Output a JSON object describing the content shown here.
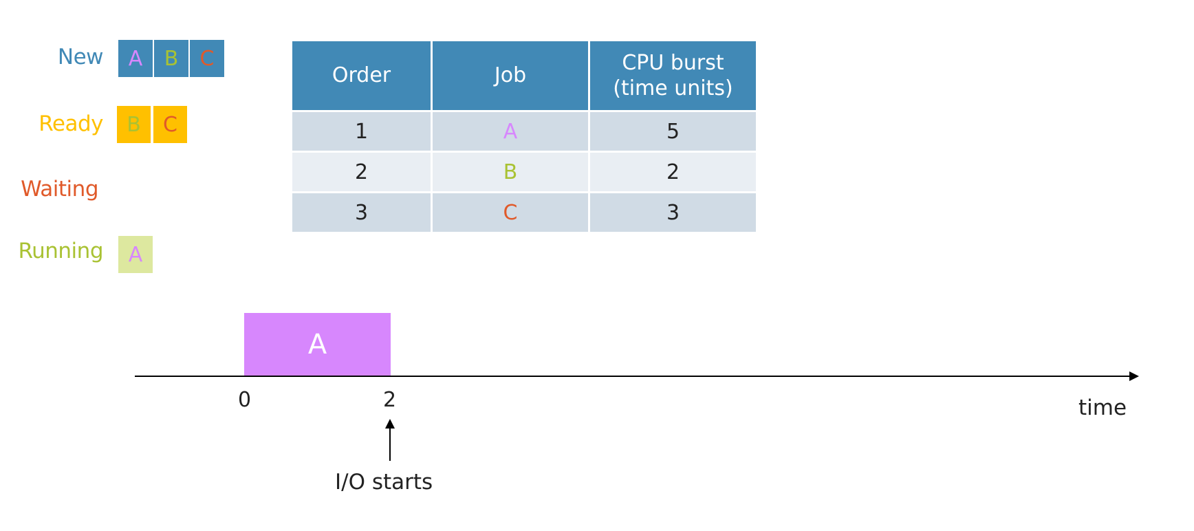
{
  "colors": {
    "new": "#4189b6",
    "ready": "#ffc000",
    "waiting": "#e05a2a",
    "running": "#a9c233",
    "job_a": "#d787fd",
    "job_b": "#a9c233",
    "job_c": "#e05a2a"
  },
  "states": {
    "new": {
      "label": "New",
      "jobs": [
        "A",
        "B",
        "C"
      ]
    },
    "ready": {
      "label": "Ready",
      "jobs": [
        "B",
        "C"
      ]
    },
    "waiting": {
      "label": "Waiting",
      "jobs": []
    },
    "running": {
      "label": "Running",
      "jobs": [
        "A"
      ]
    }
  },
  "table": {
    "headers": [
      "Order",
      "Job",
      "CPU burst\n(time units)"
    ],
    "rows": [
      {
        "order": "1",
        "job": "A",
        "burst": "5"
      },
      {
        "order": "2",
        "job": "B",
        "burst": "2"
      },
      {
        "order": "3",
        "job": "C",
        "burst": "3"
      }
    ]
  },
  "timeline": {
    "bar_label": "A",
    "ticks": [
      "0",
      "2"
    ],
    "axis_label": "time",
    "annotation": "I/O starts"
  }
}
